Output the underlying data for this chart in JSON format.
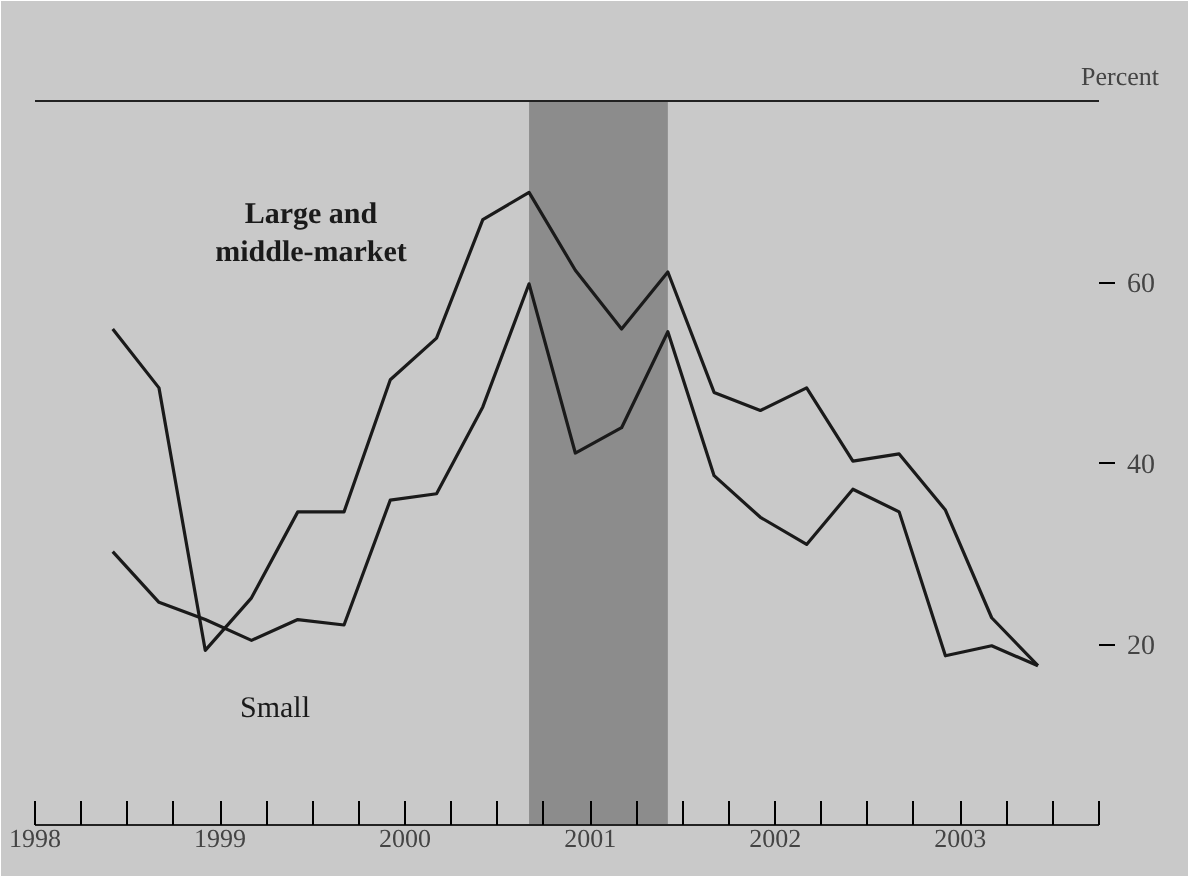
{
  "chart_data": {
    "type": "line",
    "ylabel": "Percent",
    "x": [
      1998.92,
      1999.17,
      1999.42,
      1999.67,
      1999.92,
      2000.17,
      2000.42,
      2000.67,
      2000.92,
      2001.17,
      2001.42,
      2001.67,
      2001.92,
      2002.17,
      2002.42,
      2002.67,
      2002.92,
      2003.17,
      2003.42,
      2003.67,
      2003.92
    ],
    "series": [
      {
        "name": "Large and middle-market",
        "color": "#1a1a1a",
        "values": [
          54.8,
          48.3,
          19.3,
          25.1,
          34.6,
          34.6,
          49.2,
          53.8,
          66.9,
          69.9,
          61.3,
          54.8,
          61.1,
          47.8,
          45.8,
          48.3,
          40.2,
          41.0,
          34.8,
          22.9,
          17.6
        ]
      },
      {
        "name": "Small",
        "color": "#1a1a1a",
        "values": [
          30.2,
          24.6,
          22.7,
          20.4,
          22.7,
          22.1,
          35.9,
          36.6,
          46.2,
          59.8,
          41.1,
          43.9,
          54.5,
          38.6,
          34.0,
          31.0,
          37.1,
          34.6,
          18.7,
          19.8,
          17.6
        ]
      }
    ],
    "xlim": [
      1998.5,
      2004.25
    ],
    "xticks": [
      {
        "value": 1998.5,
        "label": "1998"
      },
      {
        "value": 1998.75,
        "label": null
      },
      {
        "value": 1999.0,
        "label": null
      },
      {
        "value": 1999.25,
        "label": null
      },
      {
        "value": 1999.5,
        "label": "1999"
      },
      {
        "value": 1999.75,
        "label": null
      },
      {
        "value": 2000.0,
        "label": null
      },
      {
        "value": 2000.25,
        "label": null
      },
      {
        "value": 2000.5,
        "label": "2000"
      },
      {
        "value": 2000.75,
        "label": null
      },
      {
        "value": 2001.0,
        "label": null
      },
      {
        "value": 2001.25,
        "label": null
      },
      {
        "value": 2001.5,
        "label": "2001"
      },
      {
        "value": 2001.75,
        "label": null
      },
      {
        "value": 2002.0,
        "label": null
      },
      {
        "value": 2002.25,
        "label": null
      },
      {
        "value": 2002.5,
        "label": "2002"
      },
      {
        "value": 2002.75,
        "label": null
      },
      {
        "value": 2003.0,
        "label": null
      },
      {
        "value": 2003.25,
        "label": null
      },
      {
        "value": 2003.5,
        "label": "2003"
      },
      {
        "value": 2003.75,
        "label": null
      },
      {
        "value": 2004.0,
        "label": null
      },
      {
        "value": 2004.25,
        "label": null
      }
    ],
    "ylim": [
      0,
      80
    ],
    "yticks": [
      20,
      40,
      60
    ],
    "bands": [
      {
        "axis": "x",
        "from": 2001.17,
        "to": 2001.92,
        "label": null,
        "color": "#8c8c8c"
      }
    ],
    "grid": false,
    "marker": "none",
    "line_style": "solid"
  }
}
